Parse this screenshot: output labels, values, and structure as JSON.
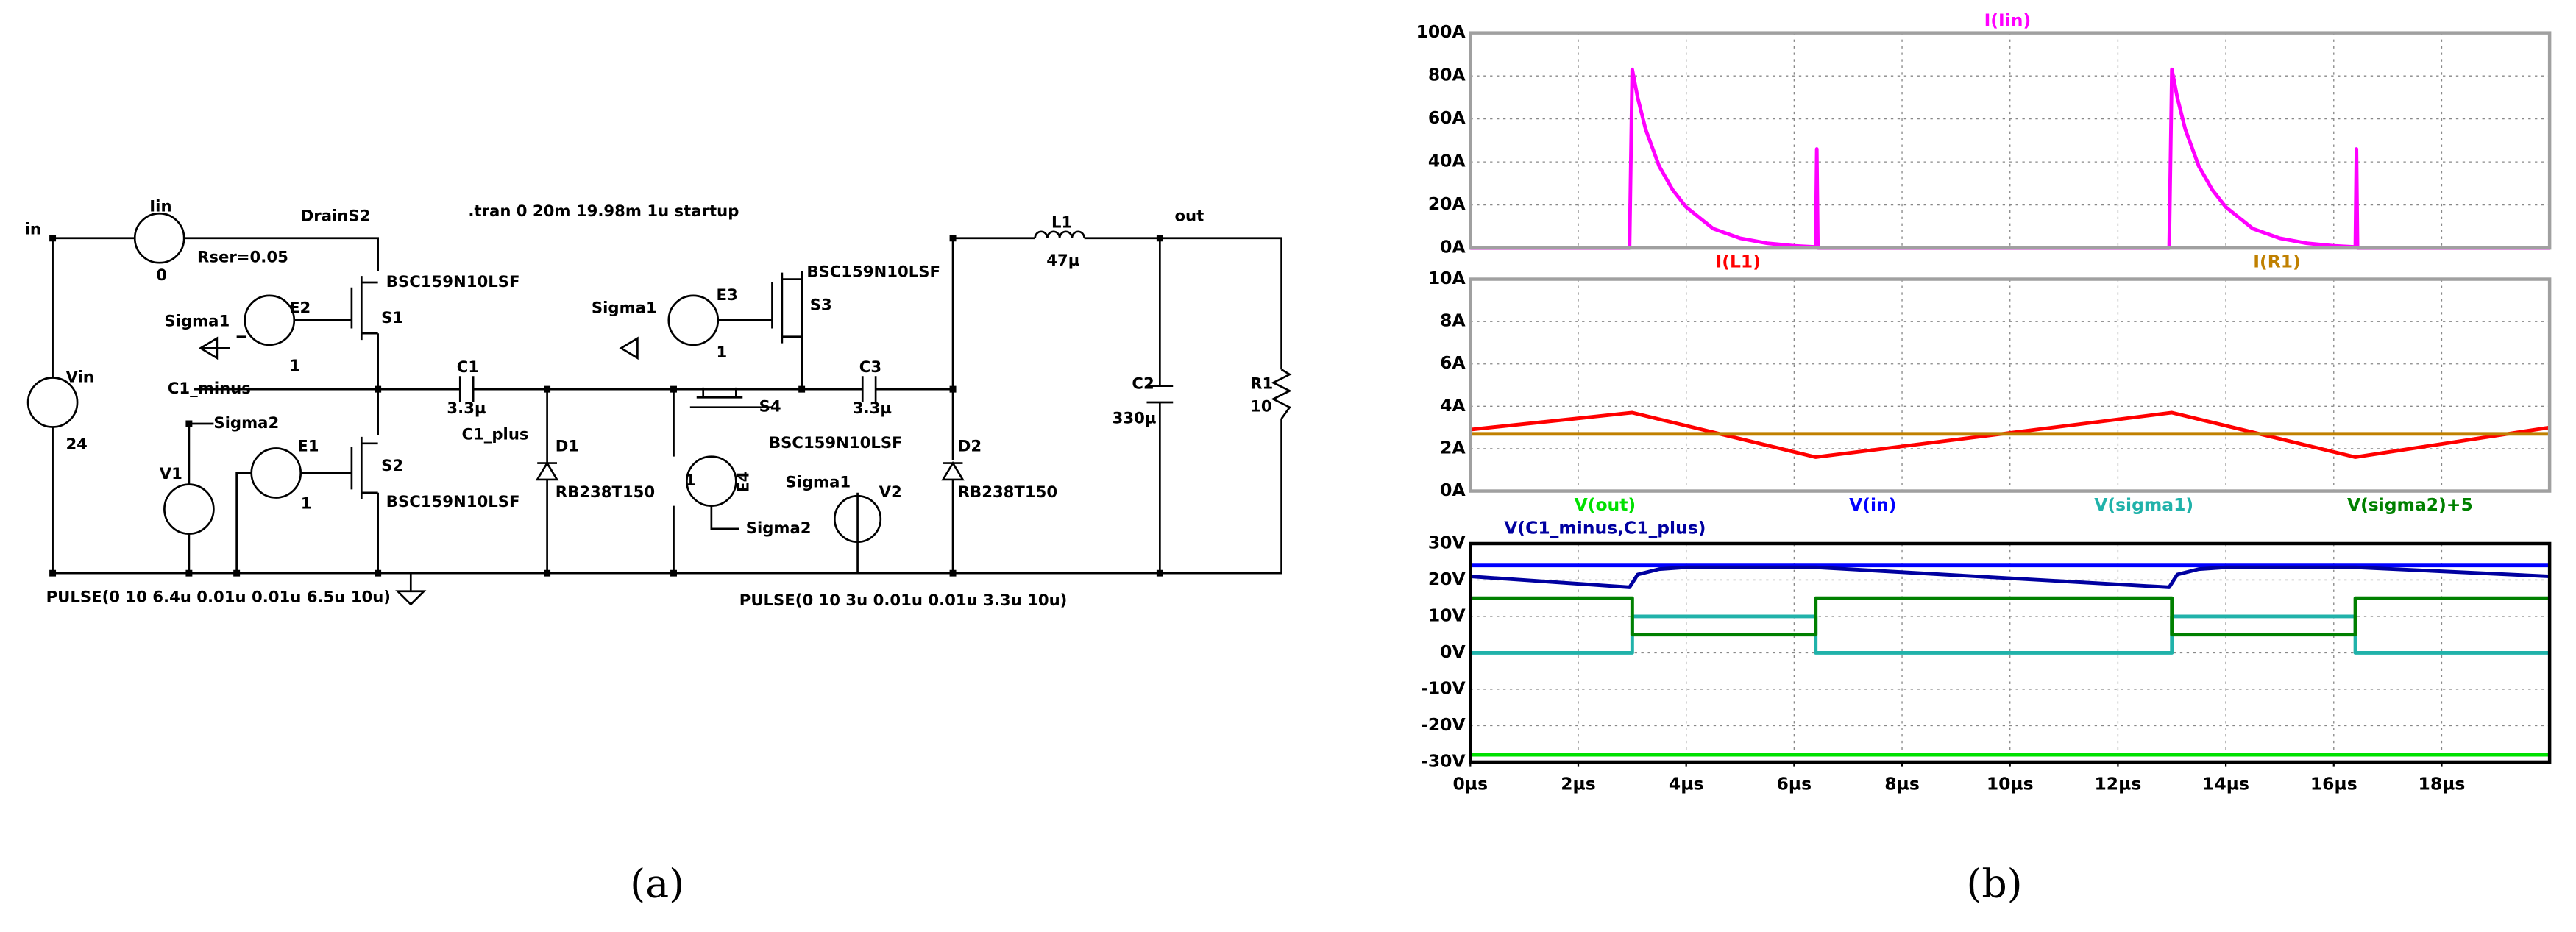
{
  "schematic": {
    "labels": [
      "in",
      "Iin",
      "0",
      "Rser=0.05",
      "DrainS2",
      ".tran 0 20m 19.98m 1u startup",
      "BSC159N10LSF",
      "S1",
      "Sigma1",
      "E2",
      "1",
      "C1_minus",
      "C1",
      "3.3µ",
      "C1_plus",
      "D1",
      "RB238T150",
      "Sigma2",
      "E1",
      "1",
      "S2",
      "BSC159N10LSF",
      "V1",
      "Vin",
      "24",
      "PULSE(0 10 6.4u 0.01u 0.01u 6.5u 10u)",
      "Sigma1",
      "E3",
      "1",
      "S3",
      "BSC159N10LSF",
      "S4",
      "BSC159N10LSF",
      "E4",
      "1",
      "Sigma2",
      "C3",
      "3.3µ",
      "Sigma1",
      "V2",
      "D2",
      "RB238T150",
      "PULSE(0 10 3u 0.01u 0.01u 3.3u 10u)",
      "L1",
      "47µ",
      "out",
      "C2",
      "330µ",
      "R1",
      "10"
    ]
  },
  "panel_labels": [
    "(a)",
    "(b)"
  ],
  "chart_data": [
    {
      "type": "line",
      "grid": true,
      "xlim": [
        0,
        20
      ],
      "ylim": [
        0,
        100
      ],
      "yticks": [
        {
          "value": 0,
          "label": "0A"
        },
        {
          "value": 20,
          "label": "20A"
        },
        {
          "value": 40,
          "label": "40A"
        },
        {
          "value": 60,
          "label": "60A"
        },
        {
          "value": 80,
          "label": "80A"
        },
        {
          "value": 100,
          "label": "100A"
        }
      ],
      "series": [
        {
          "name": "I(Iin)",
          "color": "#ff00ff",
          "x": [
            0,
            2.95,
            3.0,
            3.1,
            3.25,
            3.5,
            3.75,
            4,
            4.5,
            5,
            5.5,
            6,
            6.4,
            6.42,
            6.44,
            12.95,
            13.0,
            13.1,
            13.25,
            13.5,
            13.75,
            14,
            14.5,
            15,
            15.5,
            16,
            16.4,
            16.42,
            16.44,
            20
          ],
          "values": [
            0,
            0,
            83,
            70,
            55,
            38,
            27,
            19,
            9,
            4.5,
            2.2,
            1,
            0.5,
            46,
            0,
            0,
            83,
            70,
            55,
            38,
            27,
            19,
            9,
            4.5,
            2.2,
            1,
            0.5,
            46,
            0,
            0
          ]
        }
      ]
    },
    {
      "type": "line",
      "grid": true,
      "xlim": [
        0,
        20
      ],
      "ylim": [
        0,
        10
      ],
      "yticks": [
        {
          "value": 0,
          "label": "0A"
        },
        {
          "value": 2,
          "label": "2A"
        },
        {
          "value": 4,
          "label": "4A"
        },
        {
          "value": 6,
          "label": "6A"
        },
        {
          "value": 8,
          "label": "8A"
        },
        {
          "value": 10,
          "label": "10A"
        }
      ],
      "series": [
        {
          "name": "I(L1)",
          "color": "#ff0000",
          "x": [
            0,
            3,
            6.4,
            13,
            16.4,
            20
          ],
          "values": [
            2.9,
            3.7,
            1.6,
            3.7,
            1.6,
            3.0
          ]
        },
        {
          "name": "I(R1)",
          "color": "#c08000",
          "x": [
            0,
            20
          ],
          "values": [
            2.7,
            2.7
          ]
        }
      ]
    },
    {
      "type": "line",
      "grid": true,
      "xlim": [
        0,
        20
      ],
      "ylim": [
        -30,
        30
      ],
      "xticks": [
        {
          "value": 0,
          "label": "0µs"
        },
        {
          "value": 2,
          "label": "2µs"
        },
        {
          "value": 4,
          "label": "4µs"
        },
        {
          "value": 6,
          "label": "6µs"
        },
        {
          "value": 8,
          "label": "8µs"
        },
        {
          "value": 10,
          "label": "10µs"
        },
        {
          "value": 12,
          "label": "12µs"
        },
        {
          "value": 14,
          "label": "14µs"
        },
        {
          "value": 16,
          "label": "16µs"
        },
        {
          "value": 18,
          "label": "18µs"
        }
      ],
      "yticks": [
        {
          "value": -30,
          "label": "-30V"
        },
        {
          "value": -20,
          "label": "-20V"
        },
        {
          "value": -10,
          "label": "-10V"
        },
        {
          "value": 0,
          "label": "0V"
        },
        {
          "value": 10,
          "label": "10V"
        },
        {
          "value": 20,
          "label": "20V"
        },
        {
          "value": 30,
          "label": "30V"
        }
      ],
      "series": [
        {
          "name": "V(out)",
          "color": "#00e000",
          "x": [
            0,
            20
          ],
          "values": [
            -28,
            -28
          ]
        },
        {
          "name": "V(in)",
          "color": "#0000ff",
          "x": [
            0,
            20
          ],
          "values": [
            24,
            24
          ]
        },
        {
          "name": "V(sigma1)",
          "color": "#20b2aa",
          "x": [
            0,
            3,
            3,
            6.4,
            6.4,
            13,
            13,
            16.4,
            16.4,
            20
          ],
          "values": [
            0,
            0,
            10,
            10,
            0,
            0,
            10,
            10,
            0,
            0
          ]
        },
        {
          "name": "V(sigma2)+5",
          "color": "#008000",
          "x": [
            0,
            3,
            3,
            6.4,
            6.4,
            13,
            13,
            16.4,
            16.4,
            20
          ],
          "values": [
            15,
            15,
            5,
            5,
            15,
            15,
            5,
            5,
            15,
            15
          ]
        },
        {
          "name": "V(C1_minus,C1_plus)",
          "color": "#0000a0",
          "x": [
            0,
            2.95,
            3.1,
            3.5,
            4,
            6.4,
            12.95,
            13.1,
            13.5,
            14,
            16.4,
            20
          ],
          "values": [
            21,
            18,
            21.5,
            23,
            23.5,
            23.5,
            18,
            21.5,
            23,
            23.5,
            23.5,
            21
          ]
        }
      ]
    }
  ]
}
